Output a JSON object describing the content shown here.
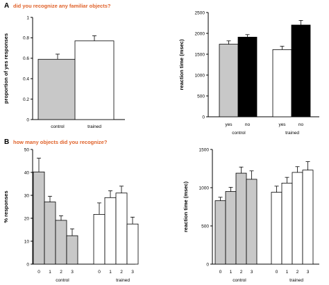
{
  "colors": {
    "grey": "#c8c8c8",
    "white": "#ffffff",
    "black": "#000000",
    "question": "#e0622a"
  },
  "section_a": {
    "letter": "A",
    "question": "did you recognize any familiar objects?"
  },
  "section_b": {
    "letter": "B",
    "question": "how many objects did you recognize?"
  },
  "chart_data": [
    {
      "id": "a-left",
      "type": "bar",
      "ylabel": "proportion of yes responses",
      "ylim": [
        0,
        1
      ],
      "yticks": [
        "0",
        "0.2",
        "0.4",
        "0.6",
        "0.8",
        "1"
      ],
      "categories": [
        "control",
        "trained"
      ],
      "values": [
        0.59,
        0.77
      ],
      "errors": [
        0.05,
        0.05
      ],
      "fills": [
        "grey",
        "white"
      ]
    },
    {
      "id": "a-right",
      "type": "bar",
      "ylabel": "reaction time (msec)",
      "ylim": [
        0,
        2500
      ],
      "yticks": [
        "0",
        "500",
        "1000",
        "1500",
        "2000",
        "2500"
      ],
      "groups": [
        "control",
        "trained"
      ],
      "categories": [
        "yes",
        "no",
        "yes",
        "no"
      ],
      "values": [
        1740,
        1910,
        1610,
        2200
      ],
      "errors": [
        80,
        60,
        80,
        110
      ],
      "fills": [
        "grey",
        "black",
        "white",
        "black"
      ]
    },
    {
      "id": "b-left",
      "type": "bar",
      "ylabel": "% responses",
      "ylim": [
        0,
        50
      ],
      "yticks": [
        "0",
        "10",
        "20",
        "30",
        "40",
        "50"
      ],
      "groups": [
        "control",
        "trained"
      ],
      "categories": [
        "0",
        "1",
        "2",
        "3",
        "0",
        "1",
        "2",
        "3"
      ],
      "values": [
        40.2,
        27.1,
        19.1,
        12.4,
        21.7,
        29.0,
        31.0,
        17.5
      ],
      "errors": [
        6.0,
        2.5,
        2.0,
        3.0,
        5.0,
        3.0,
        3.0,
        3.0
      ],
      "fills": [
        "grey",
        "grey",
        "grey",
        "grey",
        "white",
        "white",
        "white",
        "white"
      ]
    },
    {
      "id": "b-right",
      "type": "bar",
      "ylabel": "reaction time (msec)",
      "ylim": [
        0,
        1500
      ],
      "yticks": [
        "0",
        "500",
        "1000",
        "1500"
      ],
      "groups": [
        "control",
        "trained"
      ],
      "categories": [
        "0",
        "1",
        "2",
        "3",
        "0",
        "1",
        "2",
        "3"
      ],
      "values": [
        830,
        950,
        1190,
        1110,
        940,
        1060,
        1200,
        1230
      ],
      "errors": [
        45,
        55,
        80,
        110,
        80,
        75,
        75,
        110
      ],
      "fills": [
        "grey",
        "grey",
        "grey",
        "grey",
        "white",
        "white",
        "white",
        "white"
      ]
    }
  ]
}
